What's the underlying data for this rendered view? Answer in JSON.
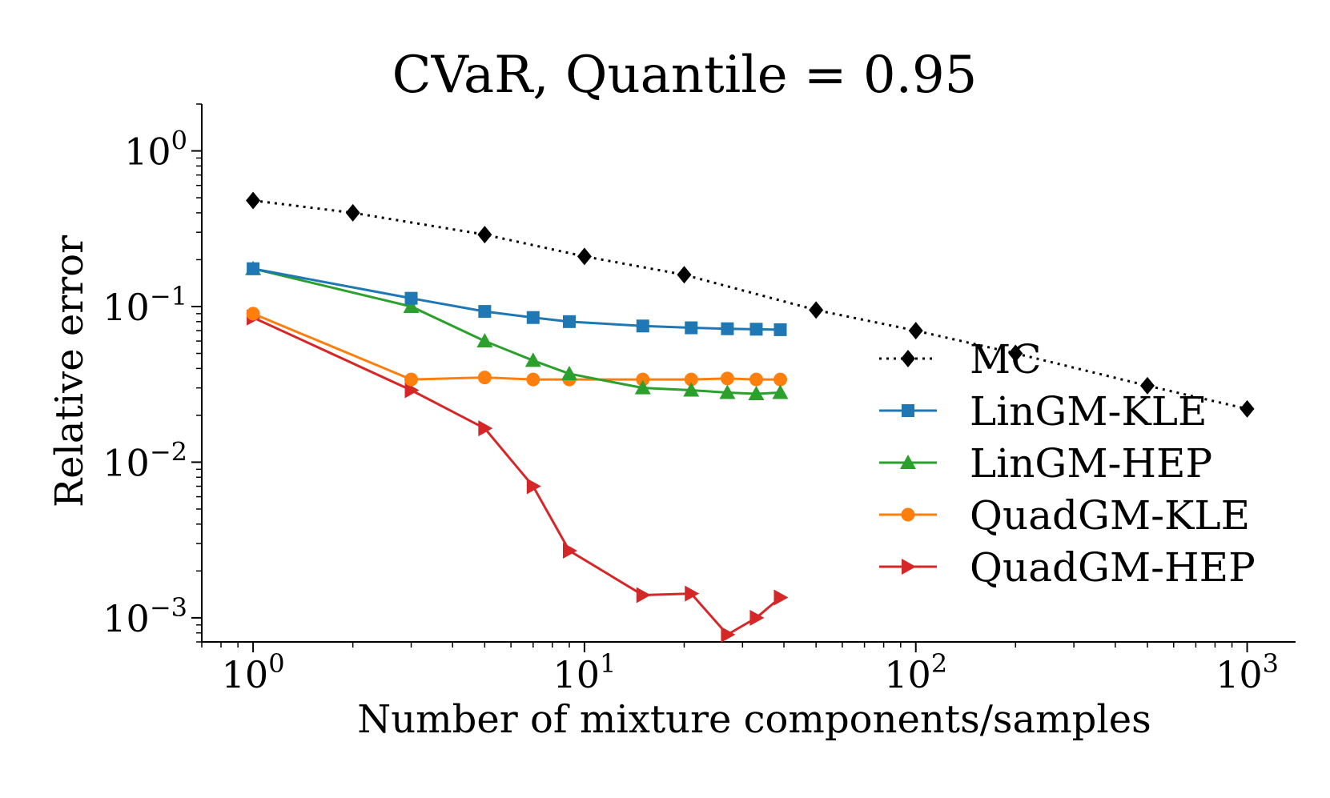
{
  "chart_data": {
    "type": "line",
    "title": "CVaR, Quantile = 0.95",
    "xlabel": "Number of mixture components/samples",
    "ylabel": "Relative error",
    "xscale": "log",
    "yscale": "log",
    "xlim": [
      0.7,
      1400
    ],
    "ylim": [
      0.0007,
      2.0
    ],
    "x_ticks": [
      {
        "value": 1,
        "base": "10",
        "exp": "0"
      },
      {
        "value": 10,
        "base": "10",
        "exp": "1"
      },
      {
        "value": 100,
        "base": "10",
        "exp": "2"
      },
      {
        "value": 1000,
        "base": "10",
        "exp": "3"
      }
    ],
    "y_ticks": [
      {
        "value": 1,
        "base": "10",
        "exp": "0"
      },
      {
        "value": 0.1,
        "base": "10",
        "exp": "−1"
      },
      {
        "value": 0.01,
        "base": "10",
        "exp": "−2"
      },
      {
        "value": 0.001,
        "base": "10",
        "exp": "−3"
      }
    ],
    "legend_position": "right",
    "series": [
      {
        "name": "MC",
        "color": "#000000",
        "marker": "diamond",
        "linestyle": "dotted",
        "x": [
          1,
          2,
          5,
          10,
          20,
          50,
          100,
          200,
          500,
          1000
        ],
        "y": [
          0.48,
          0.4,
          0.29,
          0.21,
          0.16,
          0.095,
          0.07,
          0.05,
          0.031,
          0.022
        ]
      },
      {
        "name": "LinGM-KLE",
        "color": "#1f77b4",
        "marker": "square",
        "linestyle": "solid",
        "x": [
          1,
          3,
          5,
          7,
          9,
          15,
          21,
          27,
          33,
          39
        ],
        "y": [
          0.175,
          0.113,
          0.093,
          0.085,
          0.08,
          0.075,
          0.073,
          0.072,
          0.0715,
          0.071
        ]
      },
      {
        "name": "LinGM-HEP",
        "color": "#2ca02c",
        "marker": "triangle-up",
        "linestyle": "solid",
        "x": [
          1,
          3,
          5,
          7,
          9,
          15,
          21,
          27,
          33,
          39
        ],
        "y": [
          0.175,
          0.1,
          0.06,
          0.045,
          0.037,
          0.03,
          0.029,
          0.028,
          0.0275,
          0.028
        ]
      },
      {
        "name": "QuadGM-KLE",
        "color": "#ff7f0e",
        "marker": "circle",
        "linestyle": "solid",
        "x": [
          1,
          3,
          5,
          7,
          9,
          15,
          21,
          27,
          33,
          39
        ],
        "y": [
          0.09,
          0.034,
          0.035,
          0.034,
          0.034,
          0.034,
          0.034,
          0.0345,
          0.034,
          0.034
        ]
      },
      {
        "name": "QuadGM-HEP",
        "color": "#d62728",
        "marker": "triangle-right",
        "linestyle": "solid",
        "x": [
          1,
          3,
          5,
          7,
          9,
          15,
          21,
          27,
          33,
          39
        ],
        "y": [
          0.085,
          0.029,
          0.0165,
          0.007,
          0.0027,
          0.0014,
          0.00143,
          0.00078,
          0.001,
          0.00135
        ]
      }
    ]
  }
}
